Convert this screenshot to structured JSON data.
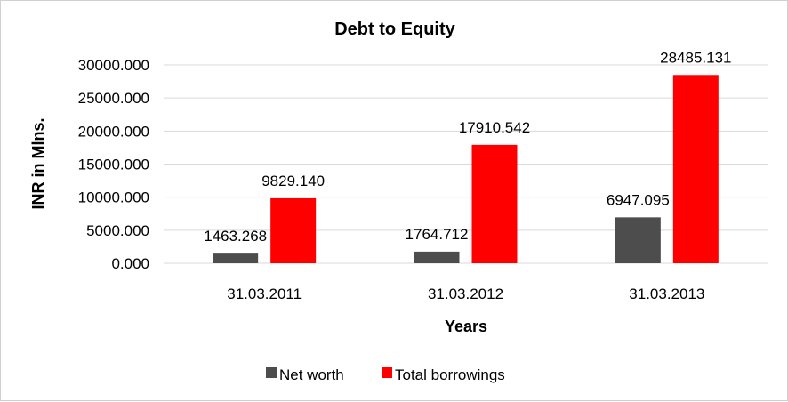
{
  "chart_data": {
    "type": "bar",
    "title": "Debt to Equity",
    "xlabel": "Years",
    "ylabel": "INR in Mlns.",
    "categories": [
      "31.03.2011",
      "31.03.2012",
      "31.03.2013"
    ],
    "series": [
      {
        "name": "Net worth",
        "values": [
          1463.268,
          1764.712,
          6947.095
        ],
        "labels": [
          "1463.268",
          "1764.712",
          "6947.095"
        ],
        "color": "#4d4d4d"
      },
      {
        "name": "Total borrowings",
        "values": [
          9829.14,
          17910.542,
          28485.131
        ],
        "labels": [
          "9829.140",
          "17910.542",
          "28485.131"
        ],
        "color": "#ff0000"
      }
    ],
    "ylim": [
      0,
      30000
    ],
    "yticks": [
      0,
      5000,
      10000,
      15000,
      20000,
      25000,
      30000
    ],
    "ytick_labels": [
      "0.000",
      "5000.000",
      "10000.000",
      "15000.000",
      "20000.000",
      "25000.000",
      "30000.000"
    ],
    "grid": true,
    "legend_position": "bottom"
  }
}
